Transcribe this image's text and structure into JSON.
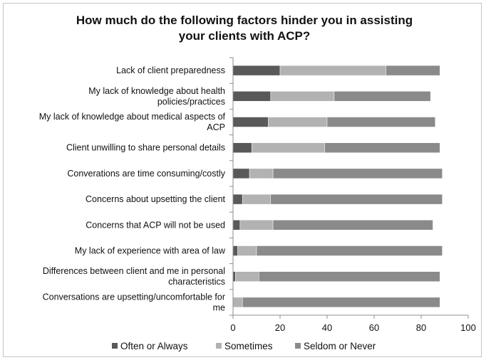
{
  "chart_data": {
    "type": "bar",
    "orientation": "horizontal",
    "stacked": true,
    "title": "How much do the following factors hinder you in assisting your clients with ACP?",
    "title_lines": [
      "How much do the following factors hinder you in assisting",
      "your clients with ACP?"
    ],
    "categories": [
      [
        "Lack of client preparedness"
      ],
      [
        "My lack of knowledge about health",
        "policies/practices"
      ],
      [
        "My lack of knowledge about medical aspects of",
        "ACP"
      ],
      [
        "Client unwilling to share personal details"
      ],
      [
        "Converations are time consuming/costly"
      ],
      [
        "Concerns about upsetting the client"
      ],
      [
        "Concerns that ACP will not be used"
      ],
      [
        "My lack of experience with area of law"
      ],
      [
        "Differences between client and me in personal",
        "characteristics"
      ],
      [
        "Conversations are upsetting/uncomfortable for",
        "me"
      ]
    ],
    "series": [
      {
        "name": "Often or Always",
        "color": "#595959",
        "values": [
          20,
          16,
          15,
          8,
          7,
          4,
          3,
          2,
          1,
          0
        ]
      },
      {
        "name": "Sometimes",
        "color": "#b2b2b2",
        "values": [
          45,
          27,
          25,
          31,
          10,
          12,
          14,
          8,
          10,
          4
        ]
      },
      {
        "name": "Seldom or Never",
        "color": "#8a8a8a",
        "values": [
          23,
          41,
          46,
          49,
          72,
          73,
          68,
          79,
          77,
          84
        ]
      }
    ],
    "xlim": [
      0,
      100
    ],
    "xticks": [
      0,
      20,
      40,
      60,
      80,
      100
    ],
    "grid": false,
    "legend_position": "bottom"
  }
}
